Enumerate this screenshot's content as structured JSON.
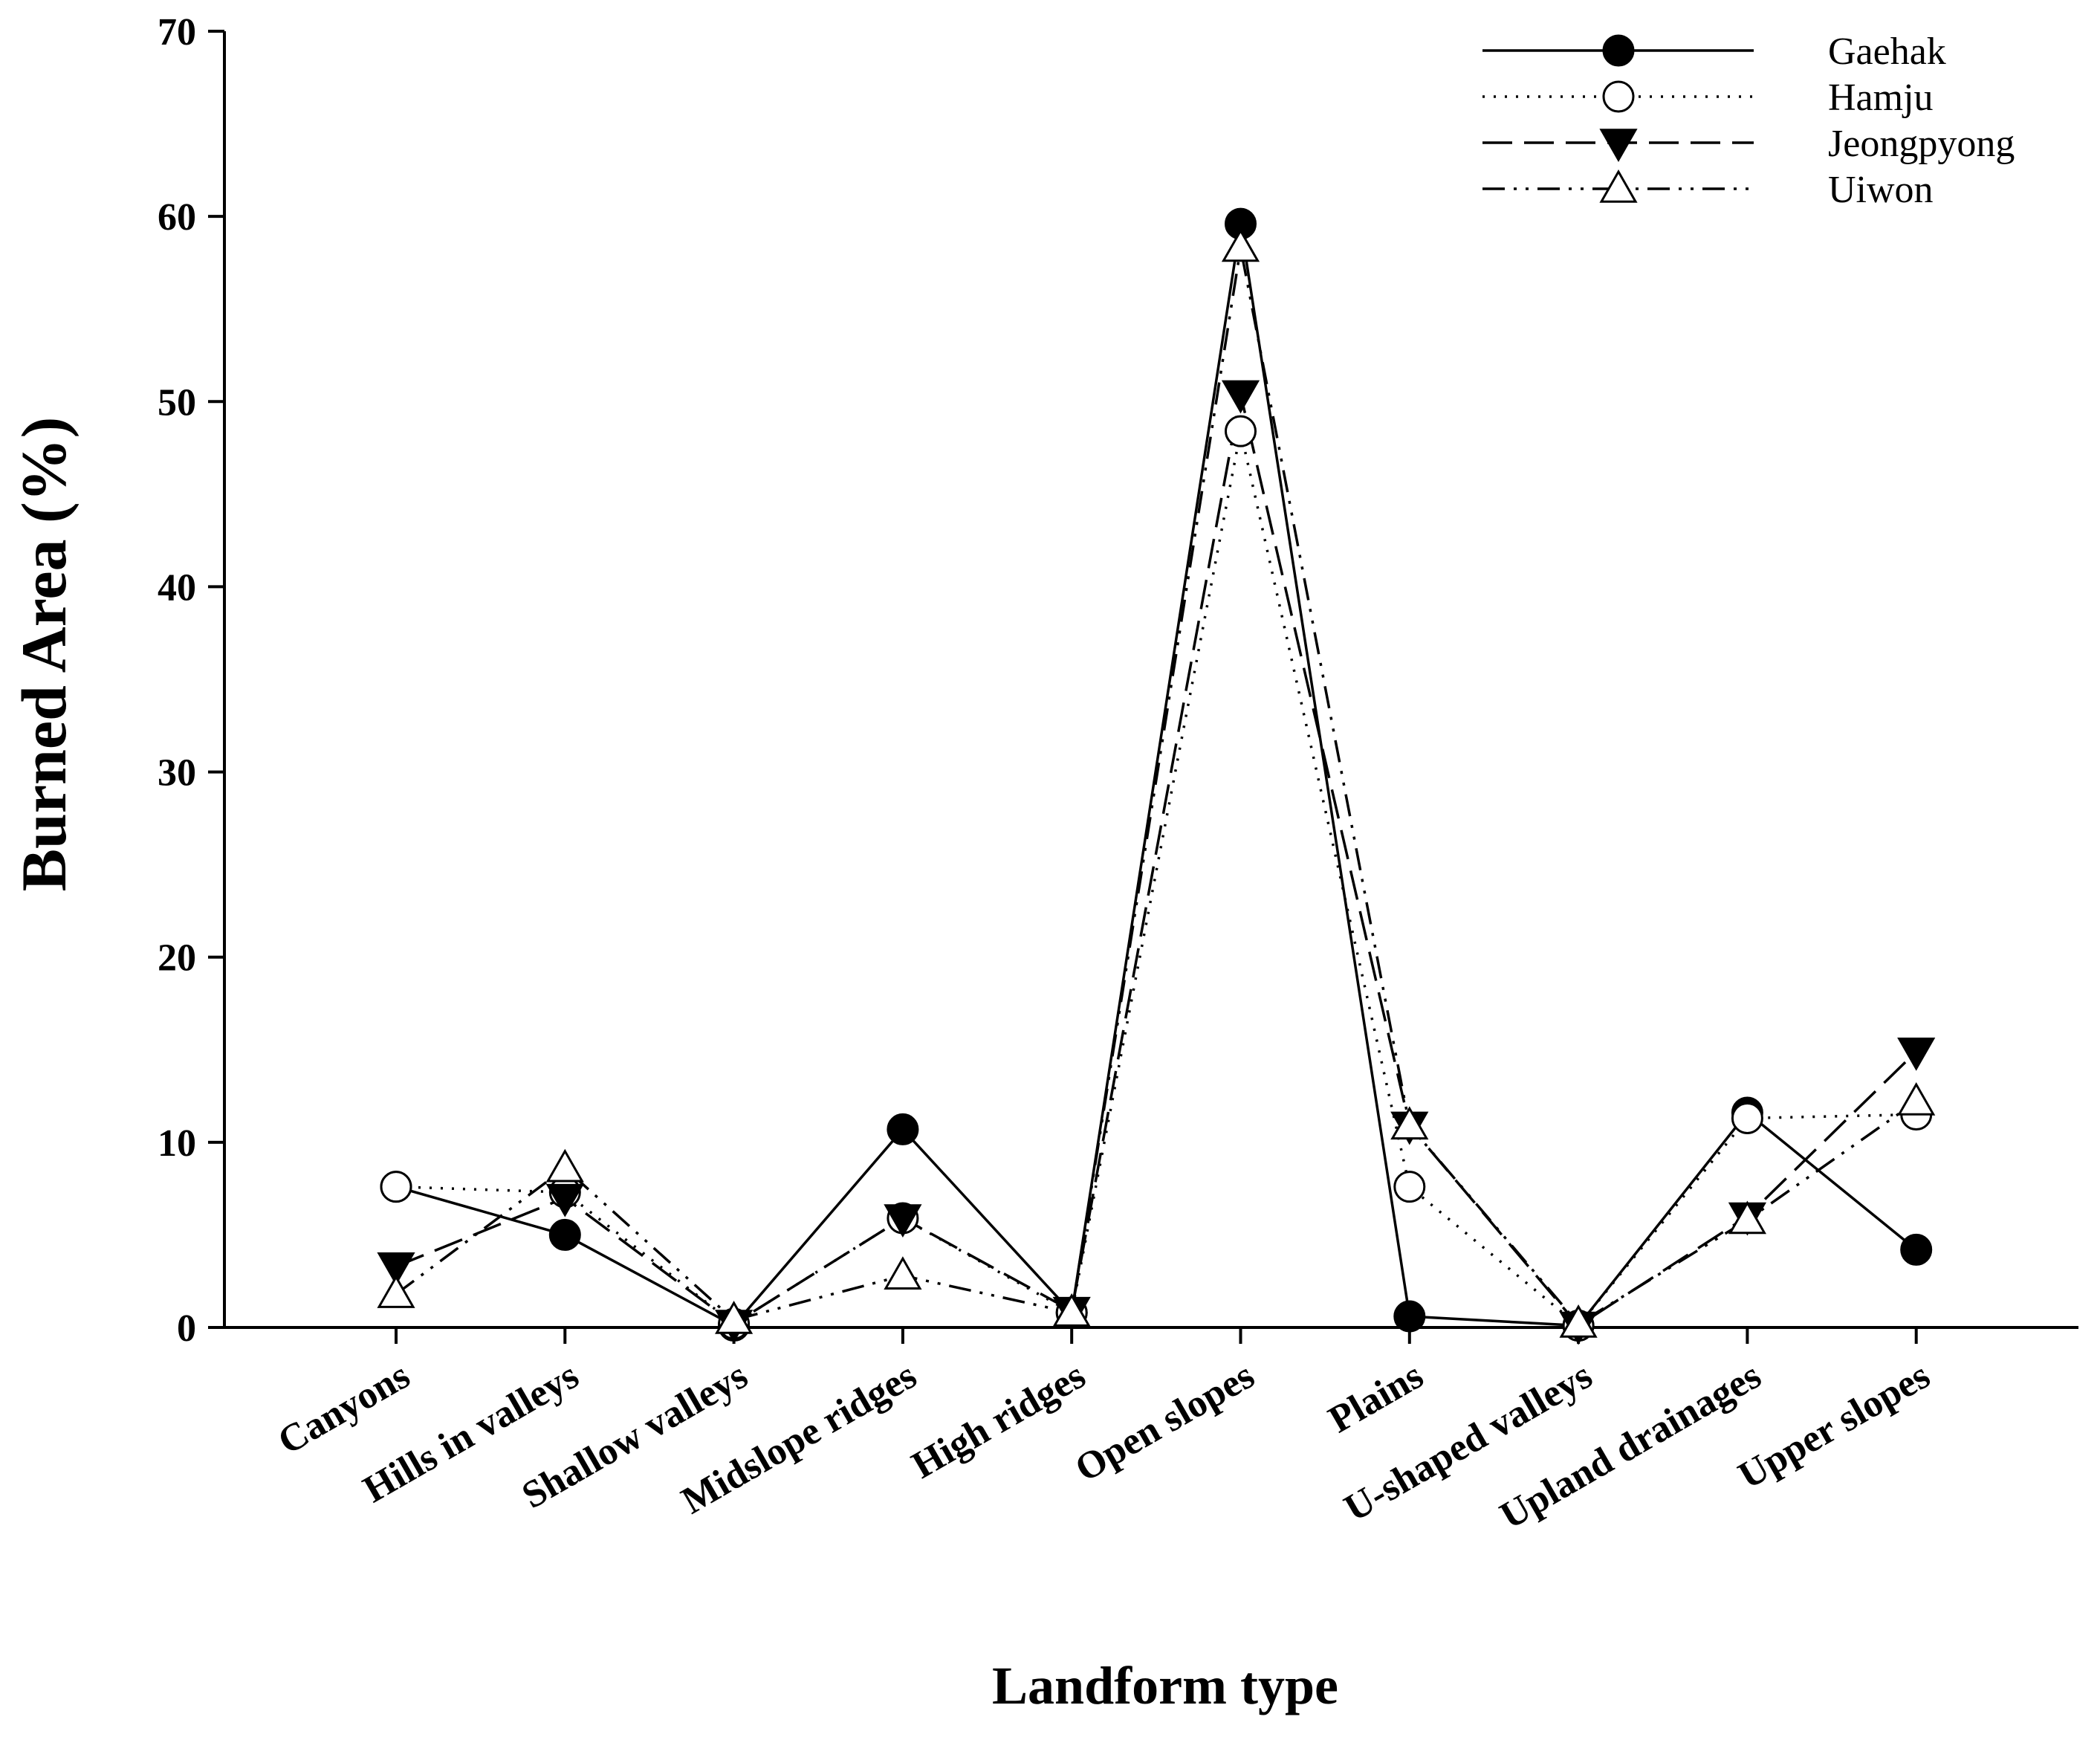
{
  "chart_data": {
    "type": "line",
    "title": "",
    "xlabel": "Landform type",
    "ylabel": "Burned Area (%)",
    "ylim": [
      0,
      70
    ],
    "yticks": [
      0,
      10,
      20,
      30,
      40,
      50,
      60,
      70
    ],
    "grid": false,
    "legend_position": "top-right",
    "categories": [
      "Canyons",
      "Hills in valleys",
      "Shallow valleys",
      "Midslope ridges",
      "High ridges",
      "Open slopes",
      "Plains",
      "U-shaped valleys",
      "Upland drainages",
      "Upper slopes"
    ],
    "series": [
      {
        "name": "Gaehak",
        "marker": "filled-circle",
        "line_style": "solid",
        "values": [
          7.6,
          5.0,
          0.1,
          10.7,
          0.8,
          59.6,
          0.6,
          0.1,
          11.6,
          4.2
        ]
      },
      {
        "name": "Hamju",
        "marker": "open-circle",
        "line_style": "dotted",
        "values": [
          7.6,
          7.3,
          0.2,
          5.9,
          0.8,
          48.4,
          7.6,
          0.1,
          11.3,
          11.5
        ]
      },
      {
        "name": "Jeongpyong",
        "marker": "filled-triangle-down",
        "line_style": "dashed",
        "values": [
          3.3,
          7.0,
          0.2,
          5.9,
          0.9,
          50.4,
          10.9,
          0.1,
          6.0,
          14.9
        ]
      },
      {
        "name": "Uiwon",
        "marker": "open-triangle-up",
        "line_style": "dash-dot-dot",
        "values": [
          1.8,
          8.6,
          0.4,
          2.8,
          0.8,
          58.3,
          10.9,
          0.2,
          5.8,
          12.2
        ]
      }
    ]
  }
}
